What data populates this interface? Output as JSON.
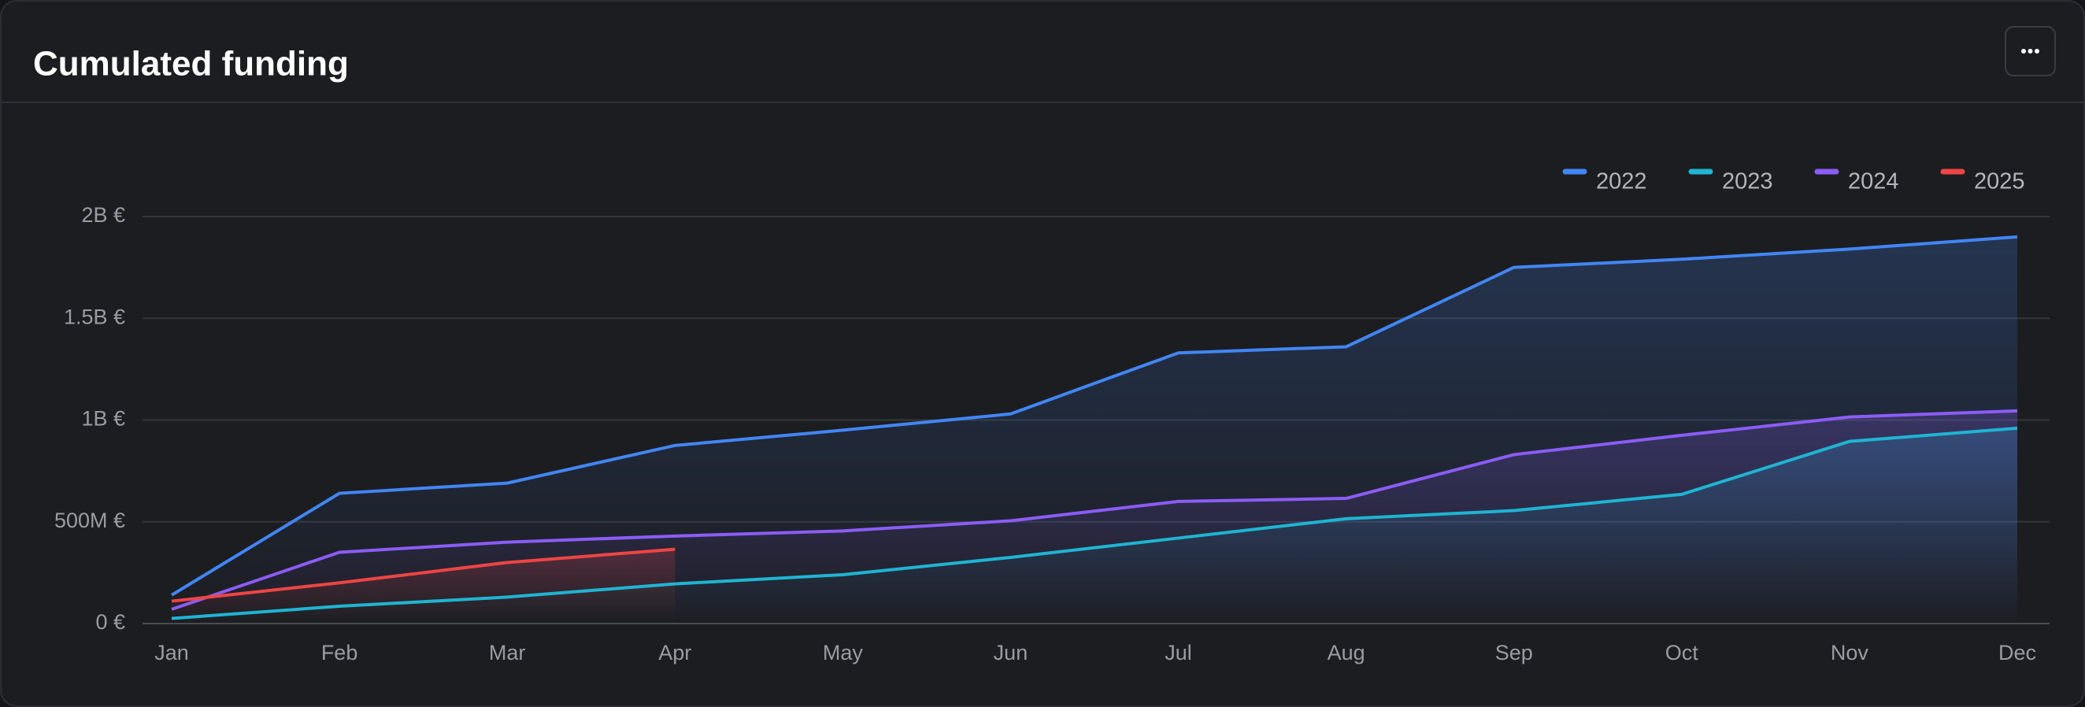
{
  "chart_data": {
    "type": "line",
    "title": "Cumulated funding",
    "categories": [
      "Jan",
      "Feb",
      "Mar",
      "Apr",
      "May",
      "Jun",
      "Jul",
      "Aug",
      "Sep",
      "Oct",
      "Nov",
      "Dec"
    ],
    "series": [
      {
        "name": "2022",
        "color": "#4285f4",
        "values": [
          140000000,
          640000000,
          690000000,
          875000000,
          950000000,
          1030000000,
          1330000000,
          1360000000,
          1750000000,
          1790000000,
          1840000000,
          1900000000
        ]
      },
      {
        "name": "2023",
        "color": "#1fb4d2",
        "values": [
          25000000,
          85000000,
          130000000,
          195000000,
          240000000,
          325000000,
          420000000,
          515000000,
          555000000,
          635000000,
          895000000,
          960000000
        ]
      },
      {
        "name": "2024",
        "color": "#8b5cf6",
        "values": [
          70000000,
          350000000,
          400000000,
          430000000,
          455000000,
          505000000,
          600000000,
          615000000,
          830000000,
          925000000,
          1015000000,
          1045000000
        ]
      },
      {
        "name": "2025",
        "color": "#ef4444",
        "values": [
          110000000,
          200000000,
          300000000,
          365000000,
          null,
          null,
          null,
          null,
          null,
          null,
          null,
          null
        ]
      }
    ],
    "ylim": [
      0,
      2000000000
    ],
    "yticks": [
      {
        "value": 0,
        "label": "0 €"
      },
      {
        "value": 500000000,
        "label": "500M €"
      },
      {
        "value": 1000000000,
        "label": "1B €"
      },
      {
        "value": 1500000000,
        "label": "1.5B €"
      },
      {
        "value": 2000000000,
        "label": "2B €"
      }
    ],
    "grid": true,
    "legend": "top-right"
  }
}
